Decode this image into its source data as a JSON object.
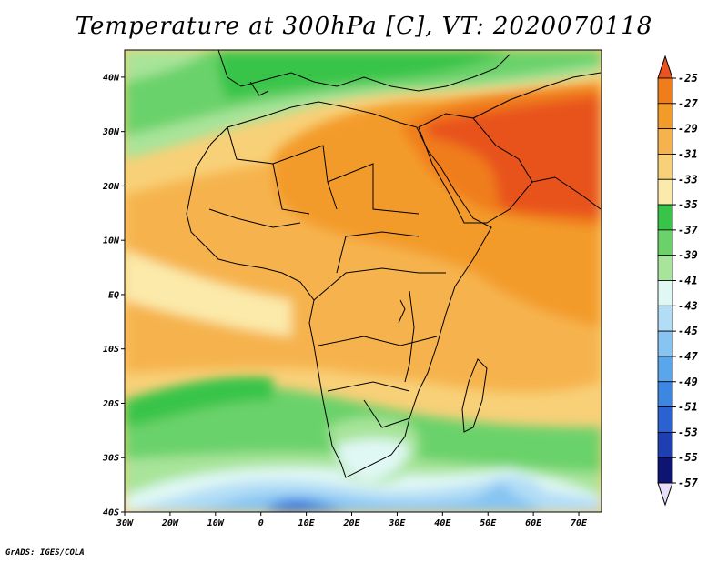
{
  "title": "Temperature at 300hPa [C], VT: 2020070118",
  "credit": "GrADS: IGES/COLA",
  "map": {
    "lon_ticks": [
      "30W",
      "20W",
      "10W",
      "0",
      "10E",
      "20E",
      "30E",
      "40E",
      "50E",
      "60E",
      "70E"
    ],
    "lat_ticks": [
      "40N",
      "30N",
      "20N",
      "10N",
      "EQ",
      "10S",
      "20S",
      "30S",
      "40S"
    ]
  },
  "colorbar": {
    "labels": [
      "-25",
      "-27",
      "-29",
      "-31",
      "-33",
      "-35",
      "-37",
      "-39",
      "-41",
      "-43",
      "-45",
      "-47",
      "-49",
      "-51",
      "-53",
      "-55",
      "-57"
    ],
    "colors": [
      "#e8531f",
      "#f07d1a",
      "#f39b29",
      "#f6b34d",
      "#f8d078",
      "#fbeaaa",
      "#38c449",
      "#6bd26a",
      "#a8e49a",
      "#e0f8f4",
      "#b2ddf6",
      "#86c4f2",
      "#5aa6ec",
      "#3c87e2",
      "#2a62d2",
      "#1d3fb2",
      "#0e1474",
      "#e8e0f8"
    ]
  }
}
